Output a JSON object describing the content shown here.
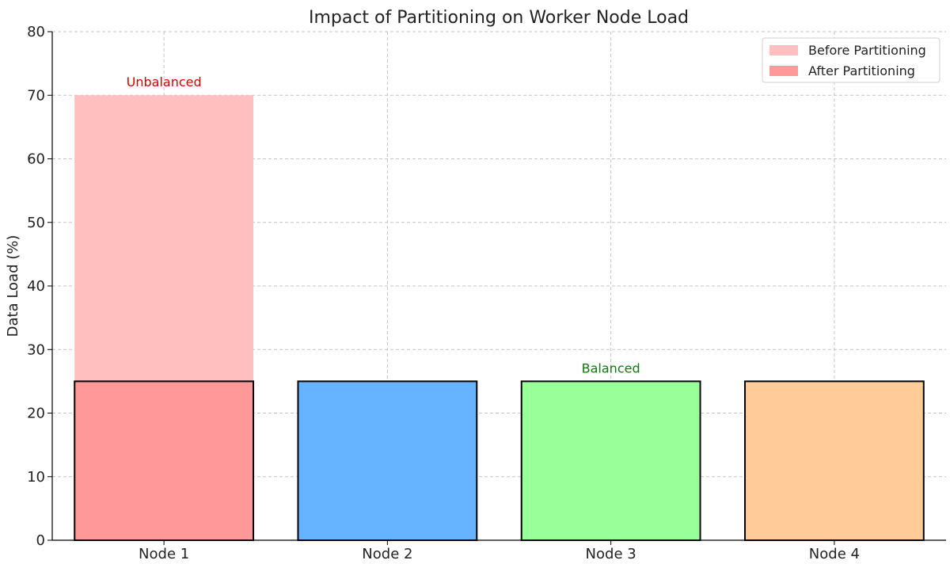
{
  "chart_data": {
    "type": "bar",
    "title": "Impact of Partitioning on Worker Node Load",
    "xlabel": "",
    "ylabel": "Data Load (%)",
    "categories": [
      "Node 1",
      "Node 2",
      "Node 3",
      "Node 4"
    ],
    "ylim": [
      0,
      80
    ],
    "yticks": [
      0,
      10,
      20,
      30,
      40,
      50,
      60,
      70,
      80
    ],
    "grid": true,
    "legend_position": "top-right",
    "series": [
      {
        "name": "Before Partitioning",
        "values": [
          70,
          0,
          0,
          0
        ],
        "color": "#ffbfbf"
      },
      {
        "name": "After Partitioning",
        "values": [
          25,
          25,
          25,
          25
        ],
        "colors": [
          "#ff9999",
          "#66b3ff",
          "#99ff99",
          "#ffcc99"
        ],
        "legend_color": "#ff9999"
      }
    ],
    "annotations": [
      {
        "text": "Unbalanced",
        "x": "Node 1",
        "y": 72,
        "color": "#dd0000"
      },
      {
        "text": "Balanced",
        "x": "Node 3",
        "y": 27,
        "color": "#117711"
      }
    ]
  }
}
